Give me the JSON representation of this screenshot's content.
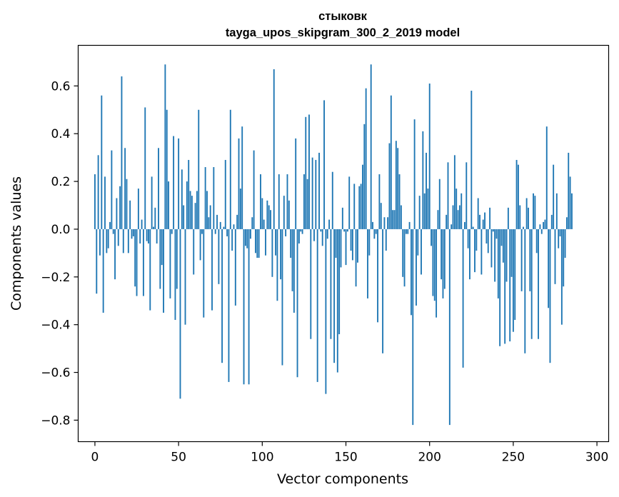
{
  "chart_data": {
    "type": "bar",
    "title": "стыковк",
    "subtitle": "tayga_upos_skipgram_300_2_2019 model",
    "xlabel": "Vector components",
    "ylabel": "Components values",
    "xlim": [
      -10,
      307
    ],
    "ylim": [
      -0.89,
      0.77
    ],
    "xticks": [
      0,
      50,
      100,
      150,
      200,
      250,
      300
    ],
    "yticks": [
      0.6,
      0.4,
      0.2,
      0.0,
      -0.2,
      -0.4,
      -0.6,
      -0.8
    ],
    "ytick_labels": [
      "0.6",
      "0.4",
      "0.2",
      "0.0",
      "−0.2",
      "−0.4",
      "−0.6",
      "−0.8"
    ],
    "bar_color": "#1f77b4",
    "grid": false,
    "values": [
      0.23,
      -0.27,
      0.31,
      -0.11,
      0.56,
      -0.35,
      0.22,
      -0.1,
      -0.08,
      0.03,
      0.33,
      -0.02,
      -0.21,
      0.13,
      -0.07,
      0.18,
      0.64,
      -0.1,
      0.34,
      0.21,
      -0.1,
      0.12,
      -0.04,
      -0.03,
      -0.24,
      -0.28,
      0.17,
      -0.06,
      0.04,
      -0.28,
      0.51,
      -0.05,
      -0.06,
      -0.34,
      0.22,
      0.01,
      0.09,
      -0.06,
      0.34,
      -0.25,
      -0.15,
      -0.35,
      0.69,
      0.5,
      0.2,
      -0.29,
      -0.02,
      0.39,
      -0.38,
      -0.25,
      0.38,
      -0.71,
      0.25,
      0.1,
      -0.4,
      0.2,
      0.29,
      0.16,
      0.14,
      -0.19,
      0.11,
      0.16,
      0.5,
      -0.13,
      -0.02,
      -0.37,
      0.26,
      0.16,
      0.05,
      0.1,
      -0.34,
      0.26,
      -0.02,
      0.06,
      -0.23,
      0.03,
      -0.56,
      0.01,
      0.29,
      -0.03,
      -0.64,
      0.5,
      -0.09,
      0.02,
      -0.32,
      0.06,
      0.38,
      0.17,
      0.43,
      -0.65,
      -0.07,
      -0.08,
      -0.65,
      -0.04,
      0.05,
      0.33,
      -0.1,
      -0.12,
      -0.12,
      0.23,
      0.13,
      0.04,
      -0.11,
      0.12,
      0.1,
      0.08,
      -0.2,
      0.67,
      -0.11,
      -0.3,
      0.23,
      -0.21,
      -0.57,
      0.14,
      -0.03,
      0.23,
      0.12,
      -0.12,
      -0.26,
      -0.35,
      0.38,
      -0.62,
      -0.06,
      -0.01,
      -0.02,
      0.23,
      0.47,
      0.21,
      0.48,
      -0.46,
      0.3,
      -0.05,
      0.29,
      -0.64,
      0.32,
      -0.01,
      -0.07,
      0.54,
      -0.69,
      -0.04,
      0.04,
      -0.46,
      0.24,
      -0.56,
      -0.12,
      -0.6,
      -0.44,
      -0.16,
      0.09,
      -0.01,
      -0.15,
      -0.01,
      0.22,
      -0.09,
      -0.13,
      0.19,
      -0.24,
      -0.14,
      0.18,
      0.19,
      0.27,
      0.44,
      0.59,
      -0.29,
      -0.11,
      0.69,
      0.03,
      -0.04,
      -0.02,
      -0.39,
      0.23,
      0.11,
      -0.52,
      0.05,
      -0.09,
      0.05,
      0.36,
      0.56,
      0.08,
      0.08,
      0.37,
      0.34,
      0.23,
      0.1,
      -0.2,
      -0.24,
      -0.02,
      -0.02,
      0.03,
      -0.36,
      -0.82,
      0.46,
      -0.32,
      -0.11,
      0.14,
      -0.19,
      0.41,
      0.15,
      0.32,
      0.17,
      0.61,
      -0.07,
      -0.28,
      -0.3,
      -0.37,
      0.08,
      0.21,
      -0.21,
      -0.29,
      -0.25,
      0.06,
      0.28,
      -0.82,
      0.02,
      0.1,
      0.31,
      0.17,
      0.08,
      0.1,
      0.15,
      -0.58,
      0.03,
      0.28,
      -0.08,
      -0.21,
      0.58,
      0.01,
      -0.18,
      -0.09,
      0.13,
      0.06,
      -0.19,
      0.04,
      0.07,
      -0.06,
      -0.1,
      0.09,
      -0.16,
      -0.01,
      -0.22,
      -0.04,
      -0.29,
      -0.49,
      -0.07,
      -0.14,
      -0.48,
      -0.22,
      0.09,
      -0.47,
      -0.2,
      -0.43,
      -0.38,
      0.29,
      0.27,
      0.1,
      -0.26,
      0.01,
      -0.52,
      0.13,
      0.09,
      -0.26,
      -0.46,
      0.15,
      0.14,
      -0.1,
      -0.46,
      0.02,
      -0.02,
      0.03,
      0.04,
      0.43,
      -0.33,
      -0.56,
      0.06,
      0.27,
      -0.23,
      0.15,
      -0.08,
      -0.03,
      -0.4,
      -0.24,
      -0.12,
      0.05,
      0.32,
      0.22,
      0.15
    ]
  }
}
